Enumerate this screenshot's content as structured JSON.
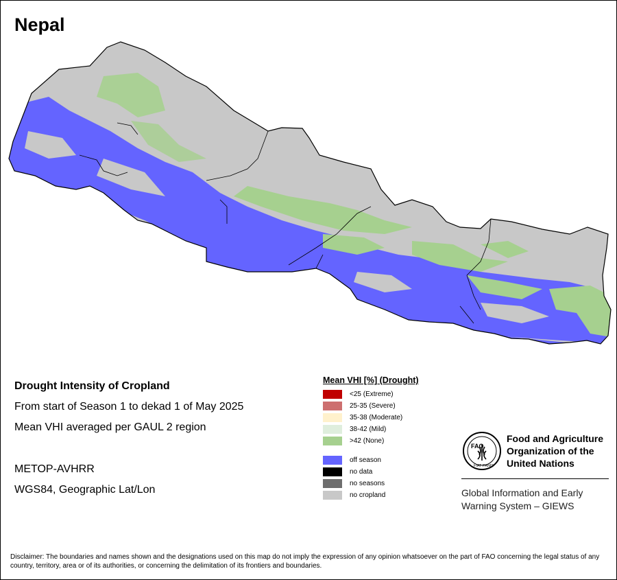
{
  "map": {
    "title": "Nepal"
  },
  "info": {
    "heading": "Drought Intensity of Cropland",
    "period": "From start of Season 1 to dekad 1 of May 2025",
    "method": "Mean VHI averaged per GAUL 2 region",
    "sensor": "METOP-AVHRR",
    "projection": "WGS84, Geographic Lat/Lon"
  },
  "legend": {
    "title": "Mean VHI [%] (Drought)",
    "items": [
      {
        "label": "<25    (Extreme)",
        "color": "#c00000"
      },
      {
        "label": "25-35 (Severe)",
        "color": "#cd6f6f"
      },
      {
        "label": "35-38 (Moderate)",
        "color": "#fff1cc"
      },
      {
        "label": "38-42 (Mild)",
        "color": "#dfeedd"
      },
      {
        "label": ">42    (None)",
        "color": "#a6d08f"
      },
      {
        "label": "off season",
        "color": "#6464ff"
      },
      {
        "label": "no data",
        "color": "#000000"
      },
      {
        "label": "no seasons",
        "color": "#6e6e6e"
      },
      {
        "label": "no cropland",
        "color": "#c8c8c8"
      }
    ]
  },
  "fao": {
    "emblem_text": "FAO",
    "emblem_motto": "FIAT PANIS",
    "line1": "Food and Agriculture",
    "line2": "Organization of the",
    "line3": "United Nations",
    "giews_line1": "Global Information and Early",
    "giews_line2": "Warning System – GIEWS"
  },
  "disclaimer": "Disclaimer: The boundaries and names shown and the designations used on this map do not imply the expression of any opinion whatsoever on the part of FAO concerning the legal status of any country, territory, area or of its authorities, or concerning the delimitation of its frontiers and boundaries."
}
